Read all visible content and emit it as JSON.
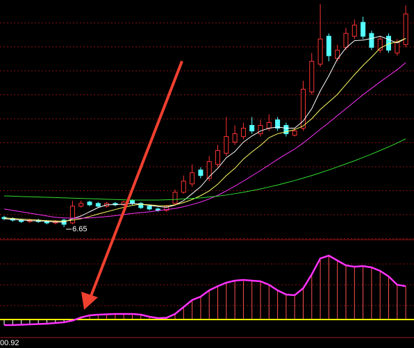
{
  "chart_data": [
    {
      "type": "candlestick",
      "grid": true,
      "ylim": [
        6.2,
        14.8
      ],
      "up_color": "#ff3232",
      "down_color": "#54ffff",
      "annotation": "6.65",
      "open": [
        7.0,
        6.95,
        6.9,
        6.85,
        6.9,
        6.85,
        6.8,
        6.9,
        6.8,
        7.4,
        7.55,
        7.5,
        7.4,
        7.5,
        7.45,
        7.6,
        7.5,
        7.4,
        7.3,
        7.25,
        7.5,
        7.9,
        8.2,
        8.7,
        8.4,
        8.9,
        9.3,
        9.7,
        9.9,
        10.3,
        10.0,
        10.2,
        10.5,
        10.3,
        9.95,
        10.2,
        11.5,
        12.5,
        13.5,
        12.7,
        13.1,
        13.5,
        14.0,
        13.6,
        13.0,
        13.5,
        12.9,
        13.2
      ],
      "high": [
        7.05,
        7.0,
        6.95,
        6.95,
        6.95,
        6.9,
        6.9,
        6.95,
        7.6,
        7.6,
        7.6,
        7.55,
        7.55,
        7.55,
        7.6,
        7.65,
        7.55,
        7.45,
        7.35,
        7.45,
        8.0,
        8.5,
        8.9,
        8.8,
        9.2,
        9.6,
        10.6,
        10.3,
        10.4,
        10.6,
        10.5,
        10.7,
        10.6,
        10.4,
        10.2,
        11.9,
        12.9,
        14.65,
        13.6,
        13.2,
        13.8,
        14.1,
        14.2,
        13.7,
        13.5,
        13.6,
        13.4,
        14.6
      ],
      "low": [
        6.9,
        6.85,
        6.8,
        6.8,
        6.8,
        6.75,
        6.75,
        6.65,
        6.75,
        7.35,
        7.4,
        7.35,
        7.35,
        7.4,
        7.4,
        7.45,
        7.3,
        7.25,
        7.2,
        7.2,
        7.45,
        7.85,
        8.1,
        8.4,
        8.3,
        8.8,
        9.2,
        9.6,
        9.8,
        10.0,
        9.9,
        10.1,
        10.1,
        9.9,
        9.9,
        10.1,
        11.4,
        12.4,
        12.6,
        12.6,
        13.0,
        13.4,
        13.4,
        13.0,
        12.9,
        12.9,
        12.8,
        13.1
      ],
      "close": [
        6.95,
        6.9,
        6.85,
        6.9,
        6.85,
        6.8,
        6.85,
        6.75,
        7.4,
        7.5,
        7.45,
        7.4,
        7.5,
        7.45,
        7.55,
        7.5,
        7.35,
        7.3,
        7.25,
        7.4,
        7.9,
        8.3,
        8.6,
        8.5,
        9.0,
        9.4,
        9.9,
        10.0,
        10.2,
        10.1,
        10.3,
        10.4,
        10.2,
        10.0,
        10.1,
        11.6,
        12.6,
        13.4,
        12.8,
        13.0,
        13.6,
        13.9,
        13.5,
        13.1,
        13.4,
        13.0,
        13.3,
        14.3
      ],
      "lines": [
        {
          "color": "#ffffff",
          "values": [
            6.95,
            6.93,
            6.9,
            6.88,
            6.87,
            6.86,
            6.83,
            6.83,
            6.95,
            7.05,
            7.2,
            7.35,
            7.45,
            7.46,
            7.47,
            7.5,
            7.47,
            7.43,
            7.39,
            7.36,
            7.44,
            7.6,
            7.85,
            8.1,
            8.46,
            8.76,
            9.14,
            9.36,
            9.7,
            9.92,
            10.1,
            10.2,
            10.24,
            10.2,
            10.2,
            10.46,
            10.9,
            11.54,
            12.08,
            12.68,
            13.08,
            13.34,
            13.36,
            13.42,
            13.5,
            13.38,
            13.26,
            13.42
          ]
        },
        {
          "color": "#ffff66",
          "values": [
            6.98,
            6.96,
            6.94,
            6.92,
            6.9,
            6.88,
            6.87,
            6.86,
            6.9,
            6.95,
            7.03,
            7.12,
            7.2,
            7.28,
            7.36,
            7.43,
            7.47,
            7.45,
            7.42,
            7.41,
            7.45,
            7.53,
            7.64,
            7.78,
            7.95,
            8.19,
            8.5,
            8.76,
            9.09,
            9.35,
            9.58,
            9.86,
            10.0,
            10.07,
            10.15,
            10.28,
            10.54,
            10.87,
            11.14,
            11.41,
            11.77,
            12.12,
            12.45,
            12.75,
            13.07,
            13.23,
            13.3,
            13.42
          ]
        },
        {
          "color": "#ff33ff",
          "values": [
            7.3,
            7.25,
            7.2,
            7.15,
            7.1,
            7.05,
            7.0,
            6.98,
            6.97,
            6.97,
            6.98,
            7.0,
            7.03,
            7.06,
            7.1,
            7.14,
            7.17,
            7.2,
            7.24,
            7.28,
            7.32,
            7.38,
            7.46,
            7.55,
            7.66,
            7.79,
            7.95,
            8.12,
            8.3,
            8.49,
            8.68,
            8.88,
            9.08,
            9.27,
            9.45,
            9.67,
            9.91,
            10.16,
            10.4,
            10.65,
            10.9,
            11.15,
            11.4,
            11.63,
            11.86,
            12.08,
            12.3,
            12.55
          ]
        },
        {
          "color": "#33dd33",
          "values": [
            7.77,
            7.76,
            7.75,
            7.74,
            7.73,
            7.72,
            7.71,
            7.7,
            7.69,
            7.68,
            7.67,
            7.66,
            7.65,
            7.64,
            7.63,
            7.62,
            7.62,
            7.62,
            7.62,
            7.63,
            7.64,
            7.66,
            7.68,
            7.7,
            7.73,
            7.76,
            7.8,
            7.85,
            7.9,
            7.96,
            8.02,
            8.09,
            8.16,
            8.24,
            8.32,
            8.41,
            8.5,
            8.6,
            8.7,
            8.81,
            8.92,
            9.03,
            9.15,
            9.27,
            9.4,
            9.53,
            9.67,
            9.82
          ]
        }
      ]
    },
    {
      "type": "oscillator",
      "grid": true,
      "ylim": [
        -4,
        11.5
      ],
      "line_color": "#ff33ff",
      "up_color": "#ff5050",
      "down_color": "#ffffff",
      "zero_color": "#ffff00",
      "annotation": "00.92",
      "values": [
        -0.8,
        -0.8,
        -0.75,
        -0.7,
        -0.65,
        -0.6,
        -0.5,
        -0.4,
        -0.15,
        0.3,
        0.6,
        0.7,
        0.75,
        0.8,
        0.8,
        0.8,
        0.7,
        0.4,
        0.2,
        0.25,
        0.8,
        1.8,
        2.8,
        3.3,
        4.2,
        4.8,
        5.3,
        5.6,
        5.7,
        5.6,
        5.5,
        5.0,
        4.2,
        3.6,
        3.5,
        4.5,
        6.5,
        8.8,
        9.2,
        8.5,
        7.8,
        7.6,
        7.7,
        7.5,
        7.0,
        6.2,
        5.0,
        4.8
      ]
    }
  ]
}
